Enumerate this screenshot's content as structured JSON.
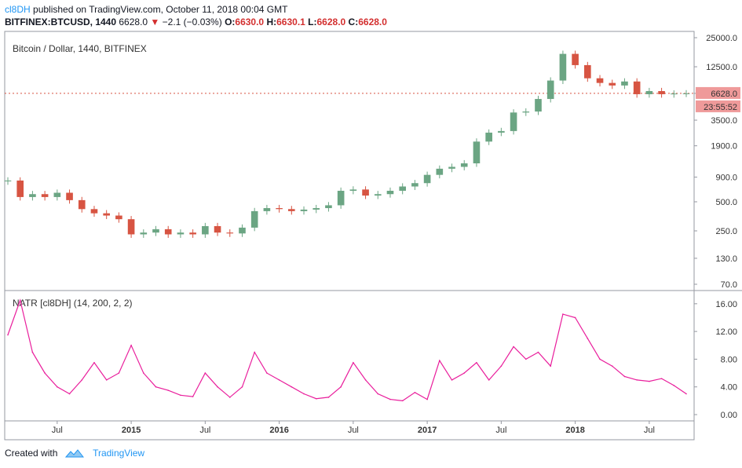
{
  "header": {
    "author": "cl8DH",
    "published_text": "published on TradingView.com, October 11, 2018 00:04 GMT",
    "symbol": "BITFINEX:BTCUSD, 1440",
    "last": "6628.0",
    "change": "−2.1 (−0.03%)",
    "open_label": "O:",
    "open": "6630.0",
    "high_label": "H:",
    "high": "6630.1",
    "low_label": "L:",
    "low": "6628.0",
    "close_label": "C:",
    "close": "6628.0"
  },
  "colors": {
    "candle_up": "#6ba583",
    "candle_down": "#d75442",
    "natr_line": "#e91e9c",
    "price_tag": "#ef9a9a",
    "grid_border": "#9598a1",
    "brand": "#2196f3"
  },
  "chart_data": [
    {
      "type": "candlestick",
      "title": "Bitcoin / Dollar, 1440, BITFINEX",
      "scale": "log",
      "ylim": [
        70,
        25000
      ],
      "y_ticks": [
        "25000.0",
        "12500.0",
        "6628.0",
        "3500.0",
        "1900.0",
        "900.0",
        "500.0",
        "250.0",
        "130.0",
        "70.0"
      ],
      "y_tick_values": [
        25000,
        12500,
        6628,
        3500,
        1900,
        900,
        500,
        250,
        130,
        70
      ],
      "last_price_label": "6628.0",
      "countdown_label": "23:55:52",
      "x_ticks": [
        "Jul",
        "2015",
        "Jul",
        "2016",
        "Jul",
        "2017",
        "Jul",
        "2018",
        "Jul"
      ],
      "x": [
        "2014-03",
        "2014-04",
        "2014-05",
        "2014-06",
        "2014-07",
        "2014-08",
        "2014-09",
        "2014-10",
        "2014-11",
        "2014-12",
        "2015-01",
        "2015-02",
        "2015-03",
        "2015-04",
        "2015-05",
        "2015-06",
        "2015-07",
        "2015-08",
        "2015-09",
        "2015-10",
        "2015-11",
        "2015-12",
        "2016-01",
        "2016-02",
        "2016-03",
        "2016-04",
        "2016-05",
        "2016-06",
        "2016-07",
        "2016-08",
        "2016-09",
        "2016-10",
        "2016-11",
        "2016-12",
        "2017-01",
        "2017-02",
        "2017-03",
        "2017-04",
        "2017-05",
        "2017-06",
        "2017-07",
        "2017-08",
        "2017-09",
        "2017-10",
        "2017-11",
        "2017-12",
        "2018-01",
        "2018-02",
        "2018-03",
        "2018-04",
        "2018-05",
        "2018-06",
        "2018-07",
        "2018-08",
        "2018-09",
        "2018-10"
      ],
      "series": [
        {
          "name": "BTCUSD",
          "values": [
            830,
            560,
            600,
            560,
            620,
            520,
            420,
            380,
            360,
            330,
            230,
            240,
            260,
            230,
            240,
            230,
            280,
            240,
            235,
            270,
            400,
            430,
            420,
            400,
            415,
            430,
            460,
            650,
            670,
            580,
            600,
            650,
            720,
            780,
            950,
            1100,
            1150,
            1250,
            2100,
            2600,
            2700,
            4200,
            4300,
            5800,
            9000,
            17000,
            13000,
            9500,
            8500,
            8000,
            8800,
            6500,
            7000,
            6500,
            6600,
            6628
          ]
        }
      ]
    },
    {
      "type": "line",
      "title": "NATR [cl8DH] (14, 200, 2, 2)",
      "ylim": [
        0,
        17
      ],
      "y_ticks": [
        "16.00",
        "12.00",
        "8.00",
        "4.00",
        "0.00"
      ],
      "y_tick_values": [
        16,
        12,
        8,
        4,
        0
      ],
      "x": [
        "2014-03",
        "2014-04",
        "2014-05",
        "2014-06",
        "2014-07",
        "2014-08",
        "2014-09",
        "2014-10",
        "2014-11",
        "2014-12",
        "2015-01",
        "2015-02",
        "2015-03",
        "2015-04",
        "2015-05",
        "2015-06",
        "2015-07",
        "2015-08",
        "2015-09",
        "2015-10",
        "2015-11",
        "2015-12",
        "2016-01",
        "2016-02",
        "2016-03",
        "2016-04",
        "2016-05",
        "2016-06",
        "2016-07",
        "2016-08",
        "2016-09",
        "2016-10",
        "2016-11",
        "2016-12",
        "2017-01",
        "2017-02",
        "2017-03",
        "2017-04",
        "2017-05",
        "2017-06",
        "2017-07",
        "2017-08",
        "2017-09",
        "2017-10",
        "2017-11",
        "2017-12",
        "2018-01",
        "2018-02",
        "2018-03",
        "2018-04",
        "2018-05",
        "2018-06",
        "2018-07",
        "2018-08",
        "2018-09",
        "2018-10"
      ],
      "series": [
        {
          "name": "NATR",
          "values": [
            11.5,
            16.5,
            9,
            6,
            4,
            3,
            5,
            7.5,
            5,
            6,
            10,
            6,
            4,
            3.5,
            2.8,
            2.6,
            6,
            4,
            2.5,
            4,
            9,
            6,
            5,
            4,
            3,
            2.3,
            2.5,
            4,
            7.5,
            5,
            3,
            2.2,
            2,
            3.2,
            2.2,
            7.8,
            5,
            6,
            7.5,
            5,
            7,
            9.8,
            8,
            9,
            7,
            14.5,
            14,
            11,
            8,
            7,
            5.5,
            5,
            4.8,
            5.2,
            4.2,
            3
          ]
        }
      ]
    }
  ],
  "footer": {
    "created_with": "Created with",
    "brand": "TradingView"
  }
}
